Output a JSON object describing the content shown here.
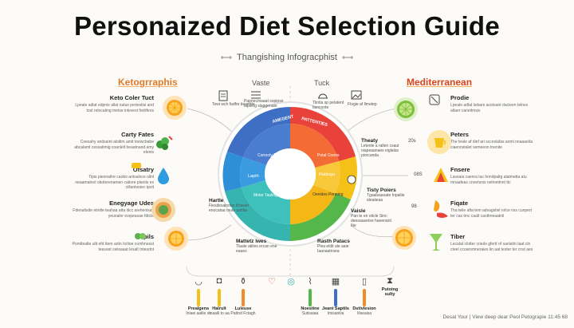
{
  "title": "Personaized Diet Selection Guide",
  "subtitle": "Thangishing Infogracphist",
  "left_header": "Ketogrraphis",
  "right_header": "Mediterranean",
  "mid_labels": {
    "left": "Vaste",
    "right": "Tuck"
  },
  "wheel": {
    "outer": [
      "AMEGENT",
      "PATTENTIES"
    ],
    "inner": [
      "Correcty Fulnes",
      "Lapth",
      "Motor Tauling",
      "Potal Crems",
      "Rattings",
      "Oenides Penning"
    ],
    "colors": {
      "blue": "#3f6fc4",
      "blue2": "#2f8fd6",
      "teal": "#36b5b0",
      "green": "#55b649",
      "red": "#e8423a",
      "orange": "#f48b2a",
      "yellow": "#f5c116"
    }
  },
  "left_items": [
    {
      "title": "Keto Coler Tuct",
      "desc": "Lpeale adlat edpnis allat natus pertestisi and tost relocating metse inlevest fonlifens",
      "icon": "orange-slice"
    },
    {
      "title": "Carty Fates",
      "desc": "Coesahy andsaint aloitim amit toewcbabe abcalamt cessatimig coanlelt beaatnand amy elenis",
      "icon": "herbs"
    },
    {
      "title": "Ofsatry",
      "desc": "Tipis pieonaltre caobo antsalnce oilnl neaamatnol oboterenamen catiore plantis ex cillantoniec tpvit",
      "icon": "water-drop"
    },
    {
      "title": "Enegyage Udes",
      "desc": "Fdenaltstte etnitle teahaa atta iticc arehenisait yeuoalnr esrpeasae fdtcle",
      "icon": "vegetables"
    },
    {
      "title": "Topils",
      "desc": "Pomltealte ulit efd ttem artin hcitoe comhnesst teavast ceiisaaat lesalt tntesdnt",
      "icon": "citrus"
    }
  ],
  "right_items": [
    {
      "title": "Prodie",
      "desc": "Lpeale adlat lsdaen acetsant dacieen telnes altaer caneitmsis",
      "icon": "lime-slice"
    },
    {
      "title": "Peters",
      "desc": "The teale af dief ari scceslafas anmi nnaaaeita ciaennstalet semeeon tnenite",
      "icon": "cup"
    },
    {
      "title": "Fnsere",
      "desc": "Lavsaia caenra tac hnndpaltg alatmetta atu mnaafeas cnnetsnis nelmetinnt ttc",
      "icon": "fruit-slices"
    },
    {
      "title": "Fiqate",
      "desc": "Tha teile afta tem advagstiel nrlce nss cunpert ter cas tmc caalt casttmeaatnli",
      "icon": "peppers"
    },
    {
      "title": "Tiber",
      "desc": "Lecalat clotter crieds gfertt of sanisttn taat cln cteel ccoaromneraies lin aat tester ter cnst aes",
      "icon": "drink-glass"
    }
  ],
  "ring_badges": [
    "20s",
    "08S",
    "98"
  ],
  "top_minis": [
    {
      "title": "",
      "desc": "Tewi wch fadfre tieamtte",
      "icon": "document"
    },
    {
      "title": "",
      "desc": "Papnecmaaat sopipse lapsiog slaggenate",
      "icon": "list"
    },
    {
      "title": "",
      "desc": "Tlintia sp pelatent bsnconte",
      "icon": "cloche"
    },
    {
      "title": "",
      "desc": "Ftvgie af llmetep",
      "icon": "image"
    }
  ],
  "side_minis": [
    {
      "title": "Theaty",
      "desc": "Letenle a rallen csaut oiapeaanaes eiglalas piorcanda"
    },
    {
      "title": "Tisty Poiers",
      "desc": "Tgaalsaaoate Inpaliie steaiieaa"
    },
    {
      "title": "Vaisle",
      "desc": "Pan te en oticle Sinc deeoaasetse haeenant Iite"
    },
    {
      "title": "Hartle",
      "desc": "Fiesdesaindan tirtasan enocataa onas aarttia"
    },
    {
      "title": "Mattetz lwes",
      "desc": "Tlaale atiiles ercan ene eaaes"
    },
    {
      "title": "Rasth Patacs",
      "desc": "Plea eldit ale aaie Iaanaatnsea"
    }
  ],
  "bottom_items": [
    {
      "label": "Prealgens",
      "sub": "Iniaei aalile ss",
      "icon": "bowl",
      "color": "#f5c116"
    },
    {
      "label": "Halrult",
      "sub": "Inaaili to aa",
      "icon": "bag",
      "color": "#f5c116"
    },
    {
      "label": "Luleuse",
      "sub": "Pattnd Fctagh",
      "icon": "bottle",
      "color": "#f48b2a"
    },
    {
      "label": "",
      "sub": "",
      "icon": "heart",
      "color": "#e8423a"
    },
    {
      "label": "",
      "sub": "",
      "icon": "target",
      "color": "#36b5b0"
    },
    {
      "label": "Noestine",
      "sub": "Sutisaiaa",
      "icon": "carrot",
      "color": "#55b649"
    },
    {
      "label": "Jeant Saptils",
      "sub": "Imisanilia",
      "icon": "calendar",
      "color": "#3f6fc4"
    },
    {
      "label": "Dstivlesion",
      "sub": "Iilseaisa",
      "icon": "jar",
      "color": "#f48b2a"
    },
    {
      "label": "Putoing sulty",
      "sub": "",
      "icon": "hourglass",
      "color": "#888888"
    }
  ],
  "footer": "Desal Your | View deep dear Peol Petograpie 11:45 68"
}
